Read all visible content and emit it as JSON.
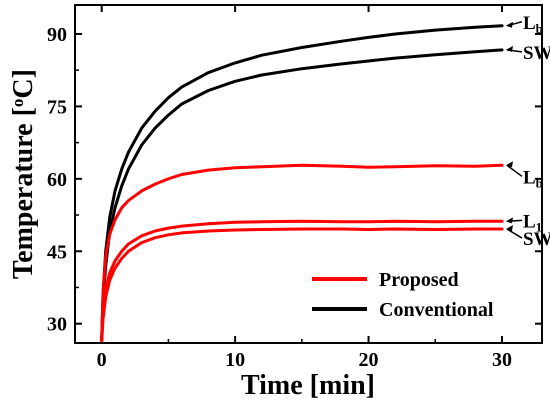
{
  "chart_data": {
    "type": "line",
    "xlabel": "Time [min]",
    "ylabel": "Temperature [°C]",
    "ylabel_parts": {
      "prefix": "Temperature [",
      "sup": "o",
      "suffix": "C]"
    },
    "xlim": [
      -2,
      33
    ],
    "ylim": [
      26,
      96
    ],
    "x_ticks": [
      0,
      10,
      20,
      30
    ],
    "y_ticks": [
      30,
      45,
      60,
      75,
      90
    ],
    "grid": false,
    "legend_position": "bottom-right",
    "legend": [
      {
        "name": "Proposed",
        "color": "#ff0000"
      },
      {
        "name": "Conventional",
        "color": "#000000"
      }
    ],
    "series": [
      {
        "group": "Conventional",
        "name": "Lb",
        "color": "#000000",
        "label": {
          "main": "L",
          "sub": "b"
        },
        "x": [
          0,
          0.1,
          0.3,
          0.6,
          1,
          1.5,
          2,
          3,
          4,
          5,
          6,
          8,
          10,
          12,
          15,
          18,
          20,
          22,
          25,
          28,
          30
        ],
        "y": [
          26.5,
          36,
          45,
          52,
          57.5,
          62,
          65.5,
          70.5,
          74,
          76.8,
          79,
          82,
          84,
          85.6,
          87.2,
          88.5,
          89.3,
          90,
          90.8,
          91.4,
          91.7
        ]
      },
      {
        "group": "Conventional",
        "name": "SW",
        "color": "#000000",
        "label": {
          "main": "SW",
          "sub": ""
        },
        "x": [
          0,
          0.1,
          0.3,
          0.6,
          1,
          1.5,
          2,
          3,
          4,
          5,
          6,
          8,
          10,
          12,
          15,
          18,
          20,
          22,
          25,
          28,
          30
        ],
        "y": [
          26.5,
          34,
          42,
          49,
          54,
          58.5,
          62,
          67,
          70.5,
          73.2,
          75.5,
          78.3,
          80.2,
          81.5,
          82.8,
          83.8,
          84.4,
          85,
          85.7,
          86.3,
          86.7
        ]
      },
      {
        "group": "Proposed",
        "name": "Lb",
        "color": "#ff0000",
        "label": {
          "main": "L",
          "sub": "b"
        },
        "x": [
          0,
          0.1,
          0.3,
          0.6,
          1,
          1.5,
          2,
          3,
          4,
          5,
          6,
          8,
          10,
          12,
          15,
          18,
          20,
          22,
          25,
          28,
          30
        ],
        "y": [
          26.5,
          36,
          44,
          48.5,
          51.5,
          54,
          55.5,
          57.5,
          58.9,
          60,
          60.9,
          61.8,
          62.3,
          62.5,
          62.8,
          62.6,
          62.4,
          62.5,
          62.7,
          62.6,
          62.8
        ]
      },
      {
        "group": "Proposed",
        "name": "L1",
        "color": "#ff0000",
        "label": {
          "main": "L",
          "sub": "1"
        },
        "x": [
          0,
          0.1,
          0.3,
          0.6,
          1,
          1.5,
          2,
          3,
          4,
          5,
          6,
          8,
          10,
          12,
          15,
          18,
          20,
          22,
          25,
          28,
          30
        ],
        "y": [
          26.5,
          32,
          37,
          40.5,
          43,
          45,
          46.5,
          48.2,
          49.2,
          49.8,
          50.2,
          50.7,
          51,
          51.1,
          51.2,
          51.1,
          51.1,
          51.2,
          51.1,
          51.2,
          51.2
        ]
      },
      {
        "group": "Proposed",
        "name": "SW",
        "color": "#ff0000",
        "label": {
          "main": "SW",
          "sub": ""
        },
        "x": [
          0,
          0.1,
          0.3,
          0.6,
          1,
          1.5,
          2,
          3,
          4,
          5,
          6,
          8,
          10,
          12,
          15,
          18,
          20,
          22,
          25,
          28,
          30
        ],
        "y": [
          26.5,
          31,
          35.5,
          39,
          41.5,
          43.5,
          45,
          46.8,
          47.8,
          48.4,
          48.8,
          49.2,
          49.4,
          49.5,
          49.6,
          49.6,
          49.5,
          49.6,
          49.5,
          49.6,
          49.6
        ]
      }
    ]
  }
}
